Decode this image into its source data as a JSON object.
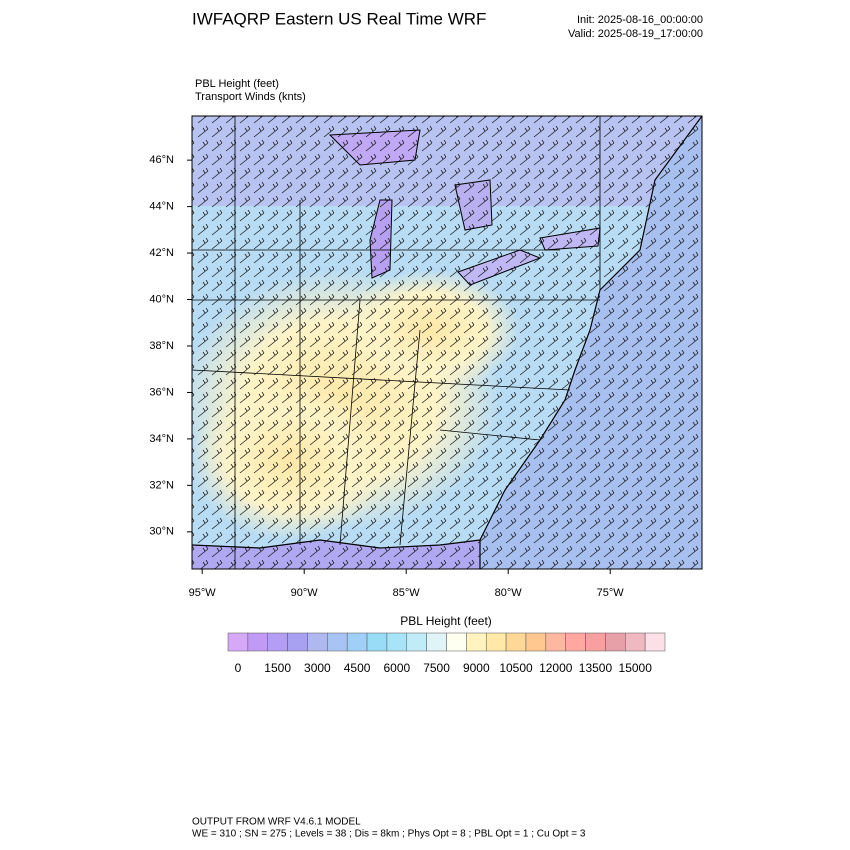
{
  "header": {
    "title": "IWFAQRP Eastern US Real Time WRF",
    "init": "Init: 2025-08-16_00:00:00",
    "valid": "Valid: 2025-08-19_17:00:00"
  },
  "map": {
    "field_label": "PBL Height   (feet)",
    "wind_label": "Transport Winds   (knts)",
    "xlim": [
      -95.5,
      -70.5
    ],
    "ylim": [
      28.4,
      47.9
    ],
    "xticks": [
      {
        "value": -95,
        "label": "95°W"
      },
      {
        "value": -90,
        "label": "90°W"
      },
      {
        "value": -85,
        "label": "85°W"
      },
      {
        "value": -80,
        "label": "80°W"
      },
      {
        "value": -75,
        "label": "75°W"
      }
    ],
    "yticks": [
      {
        "value": 30,
        "label": "30°N"
      },
      {
        "value": 32,
        "label": "32°N"
      },
      {
        "value": 34,
        "label": "34°N"
      },
      {
        "value": 36,
        "label": "36°N"
      },
      {
        "value": 38,
        "label": "38°N"
      },
      {
        "value": 40,
        "label": "40°N"
      },
      {
        "value": 42,
        "label": "42°N"
      },
      {
        "value": 44,
        "label": "44°N"
      },
      {
        "value": 46,
        "label": "46°N"
      }
    ]
  },
  "colorbar": {
    "label": "PBL Height  (feet)",
    "ticks": [
      0,
      1500,
      3000,
      4500,
      6000,
      7500,
      9000,
      10500,
      12000,
      13500,
      15000
    ],
    "colors": [
      "#d8a8f8",
      "#c09af5",
      "#b49ef5",
      "#a8a0f0",
      "#b0b8f0",
      "#a8c4f4",
      "#a0d0f8",
      "#98dcf8",
      "#a8e4f8",
      "#c0ecf8",
      "#e0f4f8",
      "#fffff0",
      "#fff4c0",
      "#ffe8a8",
      "#ffd898",
      "#ffc890",
      "#ffb8a0",
      "#ffa8a0",
      "#f8a0a0",
      "#e8a0a8",
      "#f0b8c0",
      "#fce0e8"
    ]
  },
  "footer": {
    "line1": "OUTPUT FROM WRF V4.6.1 MODEL",
    "line2": "WE = 310 ; SN = 275 ; Levels = 38 ; Dis = 8km ; Phys Opt = 8 ; PBL Opt = 1 ; Cu Opt = 3"
  }
}
